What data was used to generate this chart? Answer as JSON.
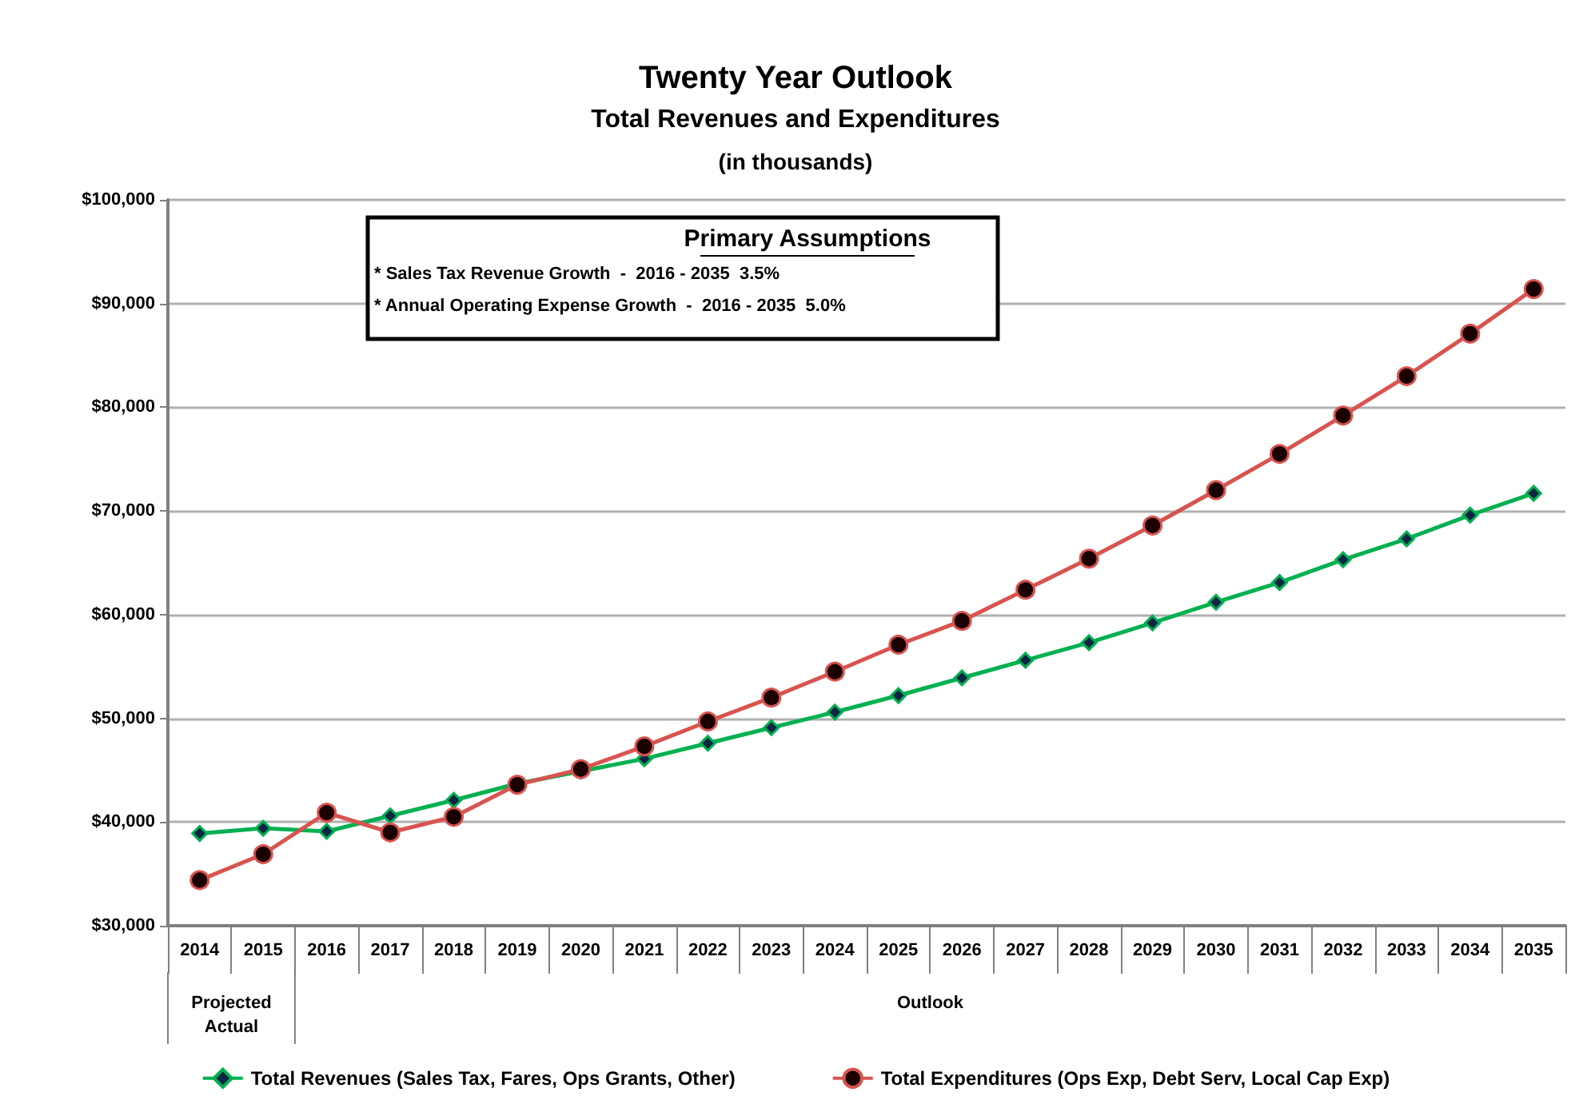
{
  "chart_data": {
    "type": "line",
    "title": "Twenty Year Outlook",
    "subtitle": "Total Revenues and Expenditures",
    "annotations": [
      "(in thousands)",
      "Primary Assumptions",
      "* Sales Tax Revenue Growth  -  2016 - 2035  3.5%",
      "* Annual Operating Expense Growth  -  2016 - 2035  5.0%",
      "Projected\nActual",
      "Outlook"
    ],
    "categories": [
      "2014",
      "2015",
      "2016",
      "2017",
      "2018",
      "2019",
      "2020",
      "2021",
      "2022",
      "2023",
      "2024",
      "2025",
      "2026",
      "2027",
      "2028",
      "2029",
      "2030",
      "2031",
      "2032",
      "2033",
      "2034",
      "2035"
    ],
    "series": [
      {
        "name": "Total Revenues (Sales Tax, Fares, Ops Grants, Other)",
        "color": "#00b050",
        "marker": "diamond",
        "values": [
          38900,
          39400,
          39100,
          40600,
          42100,
          43700,
          44900,
          46100,
          47600,
          49100,
          50600,
          52200,
          53900,
          55600,
          57300,
          59200,
          61200,
          63100,
          65300,
          67300,
          69600,
          71700
        ]
      },
      {
        "name": "Total Expenditures (Ops Exp, Debt Serv, Local Cap Exp)",
        "color": "#d9534f",
        "marker": "circle",
        "values": [
          34400,
          36900,
          40900,
          39000,
          40500,
          43600,
          45100,
          47300,
          49700,
          52000,
          54500,
          57100,
          59400,
          62400,
          65400,
          68600,
          72000,
          75500,
          79200,
          83000,
          87100,
          91400
        ]
      }
    ],
    "ylim": [
      30000,
      100000
    ],
    "yticks": [
      {
        "value": 30000,
        "label": "$30,000"
      },
      {
        "value": 40000,
        "label": "$40,000"
      },
      {
        "value": 50000,
        "label": "$50,000"
      },
      {
        "value": 60000,
        "label": "$60,000"
      },
      {
        "value": 70000,
        "label": "$70,000"
      },
      {
        "value": 80000,
        "label": "$80,000"
      },
      {
        "value": 90000,
        "label": "$90,000"
      },
      {
        "value": 100000,
        "label": "$100,000"
      }
    ],
    "grid": "y",
    "legend": "bottom"
  }
}
